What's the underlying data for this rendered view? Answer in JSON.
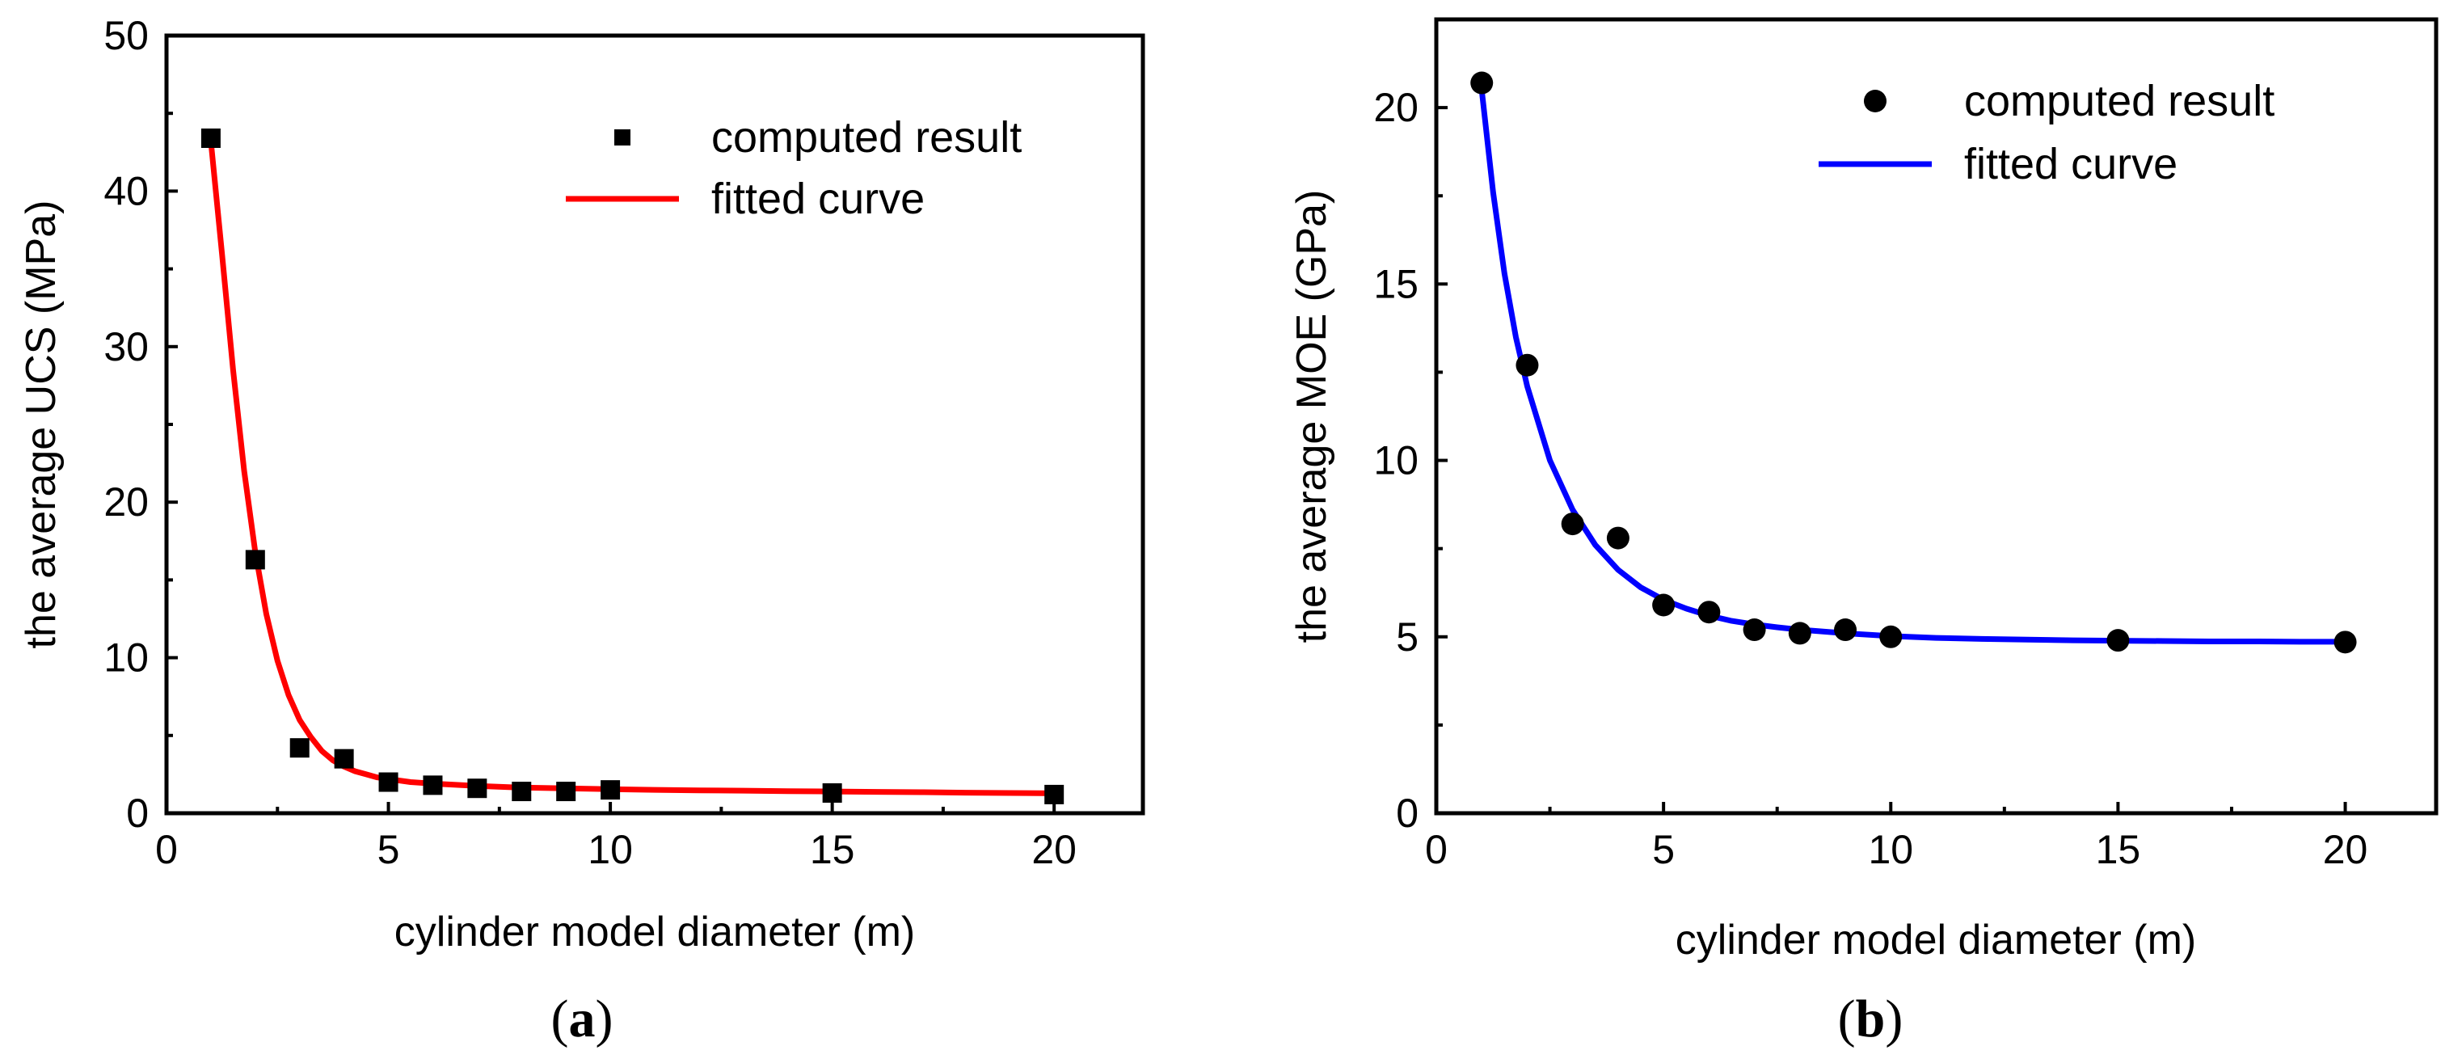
{
  "chart_data": [
    {
      "type": "scatter",
      "caption": {
        "open": "(",
        "letter": "a",
        "close": ")"
      },
      "xlabel": "cylinder model diameter (m)",
      "ylabel": "the average UCS (MPa)",
      "xlim": [
        0,
        22
      ],
      "ylim": [
        0,
        50
      ],
      "xticks": [
        0,
        5,
        10,
        15,
        20
      ],
      "yticks": [
        0,
        10,
        20,
        30,
        40,
        50
      ],
      "x_minor_ticks": [
        2.5,
        7.5,
        12.5,
        17.5
      ],
      "y_minor_ticks": [
        5,
        15,
        25,
        35,
        45
      ],
      "legend_position": "top-right",
      "series": [
        {
          "name": "computed result",
          "kind": "marker",
          "marker": "square",
          "color": "#000000",
          "x": [
            1,
            2,
            3,
            4,
            5,
            6,
            7,
            8,
            9,
            10,
            15,
            20
          ],
          "y": [
            43.4,
            16.3,
            4.2,
            3.5,
            2.0,
            1.8,
            1.6,
            1.4,
            1.4,
            1.5,
            1.3,
            1.2
          ]
        },
        {
          "name": "fitted curve",
          "kind": "line",
          "color": "#ff0000",
          "x": [
            1,
            1.25,
            1.5,
            1.75,
            2,
            2.25,
            2.5,
            2.75,
            3,
            3.25,
            3.5,
            3.75,
            4,
            4.25,
            4.5,
            4.75,
            5,
            5.5,
            6,
            7,
            8,
            9,
            10,
            11,
            12,
            13,
            14,
            15,
            16,
            17,
            18,
            19,
            20
          ],
          "y": [
            43.2,
            36.0,
            28.5,
            22.0,
            16.8,
            12.8,
            9.8,
            7.6,
            6.0,
            4.9,
            4.0,
            3.4,
            3.0,
            2.7,
            2.5,
            2.3,
            2.2,
            2.0,
            1.9,
            1.75,
            1.65,
            1.6,
            1.55,
            1.5,
            1.47,
            1.45,
            1.42,
            1.4,
            1.37,
            1.35,
            1.32,
            1.3,
            1.28
          ]
        }
      ]
    },
    {
      "type": "scatter",
      "caption": {
        "open": "(",
        "letter": "b",
        "close": ")"
      },
      "xlabel": "cylinder model diameter (m)",
      "ylabel": "the average MOE (GPa)",
      "xlim": [
        0,
        22
      ],
      "ylim": [
        0,
        22.5
      ],
      "xticks": [
        0,
        5,
        10,
        15,
        20
      ],
      "yticks": [
        0,
        5,
        10,
        15,
        20
      ],
      "x_minor_ticks": [
        2.5,
        7.5,
        12.5,
        17.5
      ],
      "y_minor_ticks": [
        2.5,
        7.5,
        12.5,
        17.5
      ],
      "legend_position": "top-right",
      "series": [
        {
          "name": "computed result",
          "kind": "marker",
          "marker": "circle",
          "color": "#000000",
          "x": [
            1,
            2,
            3,
            4,
            5,
            6,
            7,
            8,
            9,
            10,
            15,
            20
          ],
          "y": [
            20.7,
            12.7,
            8.2,
            7.8,
            5.9,
            5.7,
            5.2,
            5.1,
            5.2,
            5.0,
            4.9,
            4.85
          ]
        },
        {
          "name": "fitted curve",
          "kind": "line",
          "color": "#0000ff",
          "x": [
            1,
            1.25,
            1.5,
            1.75,
            2,
            2.5,
            3,
            3.5,
            4,
            4.5,
            5,
            5.5,
            6,
            6.5,
            7,
            7.5,
            8,
            9,
            10,
            11,
            12,
            13,
            14,
            15,
            16,
            17,
            18,
            19,
            20
          ],
          "y": [
            20.5,
            17.6,
            15.3,
            13.5,
            12.1,
            10.0,
            8.6,
            7.6,
            6.9,
            6.4,
            6.05,
            5.8,
            5.6,
            5.45,
            5.35,
            5.27,
            5.2,
            5.1,
            5.02,
            4.97,
            4.94,
            4.92,
            4.9,
            4.89,
            4.88,
            4.87,
            4.87,
            4.86,
            4.86
          ]
        }
      ]
    }
  ]
}
